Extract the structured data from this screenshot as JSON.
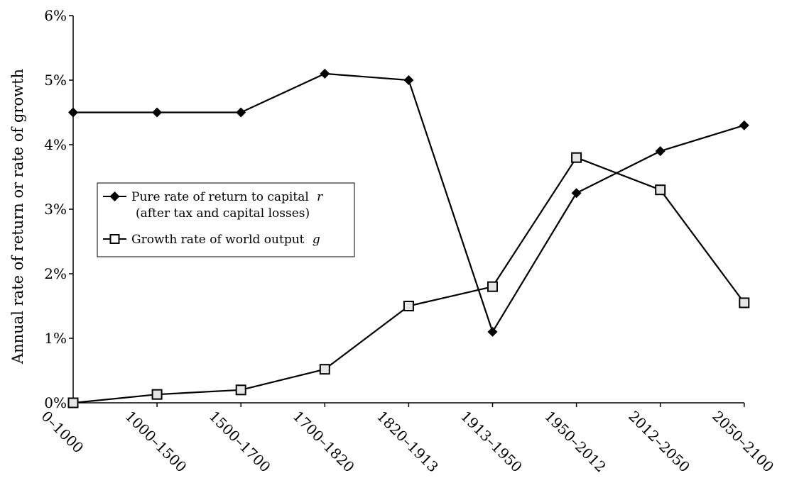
{
  "chart_data": {
    "type": "line",
    "categories": [
      "0–1000",
      "1000–1500",
      "1500–1700",
      "1700–1820",
      "1820–1913",
      "1913–1950",
      "1950–2012",
      "2012–2050",
      "2050–2100"
    ],
    "ylabel": "Annual rate of return or rate of growth",
    "xlabel": "",
    "title": "",
    "ylim": [
      0,
      6
    ],
    "yticks": [
      "0%",
      "1%",
      "2%",
      "3%",
      "4%",
      "5%",
      "6%"
    ],
    "grid": false,
    "legend_placement": "left-middle",
    "series": [
      {
        "name": "Pure rate of return to capital r (after tax and capital losses)",
        "legend_line1": "Pure rate of return to capital",
        "legend_var": "r",
        "legend_line2": "(after tax and capital losses)",
        "marker": "filled-diamond",
        "color": "#000000",
        "values": [
          4.5,
          4.5,
          4.5,
          5.1,
          5.0,
          1.1,
          3.25,
          3.9,
          4.3
        ]
      },
      {
        "name": "Growth rate of world output g",
        "legend_line1": "Growth rate of world output",
        "legend_var": "g",
        "marker": "hollow-square",
        "color": "#000000",
        "values": [
          0.0,
          0.13,
          0.2,
          0.52,
          1.5,
          1.8,
          3.8,
          3.3,
          1.55
        ]
      }
    ]
  }
}
